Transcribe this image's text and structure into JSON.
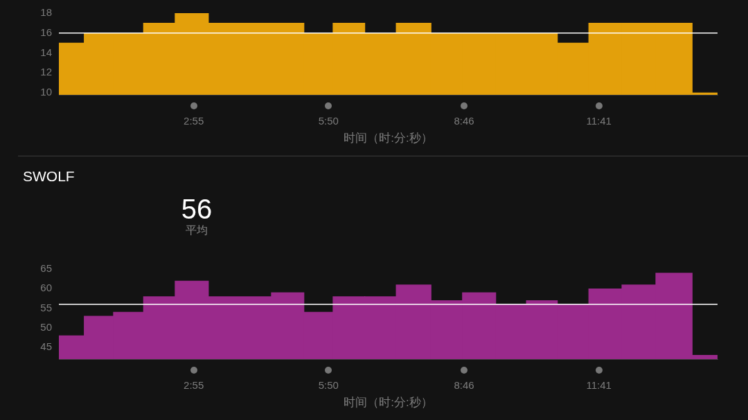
{
  "chart_data": [
    {
      "type": "histogram",
      "bins": [
        0,
        33,
        71,
        110,
        151,
        194,
        276,
        318,
        356,
        397,
        438,
        483,
        524,
        567,
        607,
        647,
        688,
        731,
        775,
        822,
        855
      ],
      "values": [
        15,
        16,
        16,
        17,
        18,
        17,
        17,
        16,
        17,
        16,
        17,
        16,
        16,
        16,
        16,
        15,
        17,
        17,
        17,
        10
      ],
      "color": "#e3a00b",
      "xlim": [
        0,
        855
      ],
      "xticks": [
        {
          "value": 175,
          "label": "2:55"
        },
        {
          "value": 350,
          "label": "5:50"
        },
        {
          "value": 526,
          "label": "8:46"
        },
        {
          "value": 701,
          "label": "11:41"
        }
      ],
      "ylim": [
        9.8,
        18
      ],
      "yticks": [
        10,
        12,
        14,
        16,
        18
      ],
      "xlabel": "时间（时:分:秒）",
      "ref_lines": [
        {
          "axis": "y",
          "value": 16,
          "color": "#ffffff"
        }
      ]
    },
    {
      "type": "histogram",
      "title": "SWOLF",
      "annotations": [
        "56",
        "平均"
      ],
      "bins": [
        0,
        33,
        71,
        110,
        151,
        194,
        276,
        318,
        356,
        397,
        438,
        483,
        524,
        567,
        607,
        647,
        688,
        731,
        775,
        822,
        855
      ],
      "values": [
        48,
        53,
        54,
        58,
        62,
        58,
        59,
        54,
        58,
        58,
        61,
        57,
        59,
        56,
        57,
        56,
        60,
        61,
        64,
        43
      ],
      "color": "#9a2a8b",
      "xlim": [
        0,
        855
      ],
      "xticks": [
        {
          "value": 175,
          "label": "2:55"
        },
        {
          "value": 350,
          "label": "5:50"
        },
        {
          "value": 526,
          "label": "8:46"
        },
        {
          "value": 701,
          "label": "11:41"
        }
      ],
      "ylim": [
        42,
        65
      ],
      "yticks": [
        45,
        50,
        55,
        60,
        65
      ],
      "xlabel": "时间（时:分:秒）",
      "ref_lines": [
        {
          "axis": "y",
          "value": 56,
          "color": "#ffffff"
        }
      ]
    }
  ]
}
